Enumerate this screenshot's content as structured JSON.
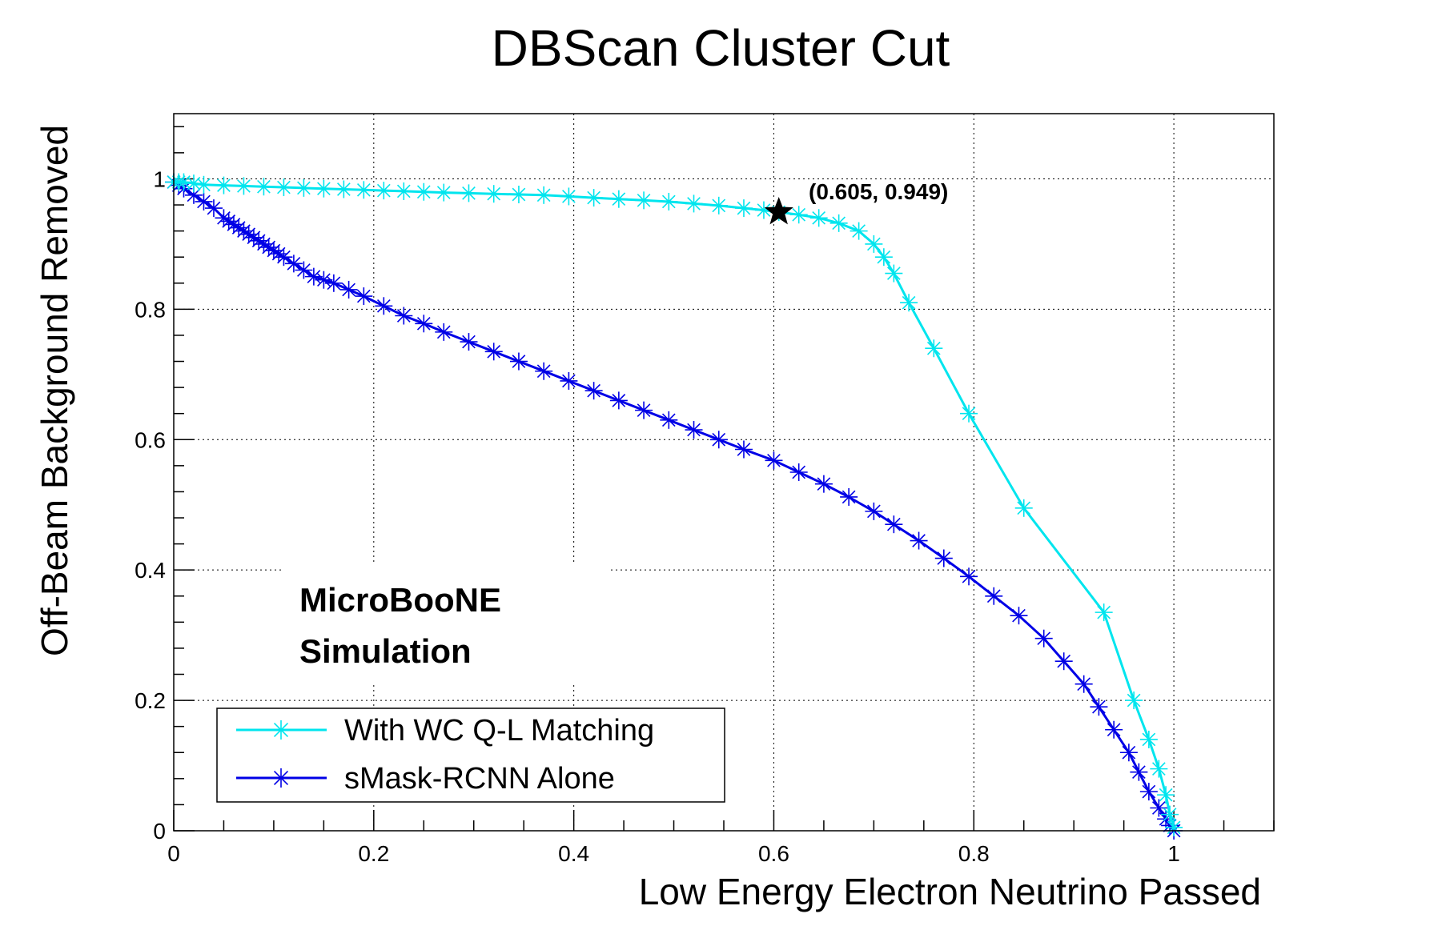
{
  "chart_data": {
    "type": "line",
    "title": "DBScan Cluster Cut",
    "xlabel": "Low Energy Electron Neutrino Passed",
    "ylabel": "Off-Beam Background Removed",
    "xlim": [
      0,
      1.1
    ],
    "ylim": [
      0,
      1.1
    ],
    "grid": true,
    "x_ticks": [
      {
        "value": 0,
        "label": "0"
      },
      {
        "value": 0.2,
        "label": "0.2"
      },
      {
        "value": 0.4,
        "label": "0.4"
      },
      {
        "value": 0.6,
        "label": "0.6"
      },
      {
        "value": 0.8,
        "label": "0.8"
      },
      {
        "value": 1,
        "label": "1"
      }
    ],
    "y_ticks": [
      {
        "value": 0,
        "label": "0"
      },
      {
        "value": 0.2,
        "label": "0.2"
      },
      {
        "value": 0.4,
        "label": "0.4"
      },
      {
        "value": 0.6,
        "label": "0.6"
      },
      {
        "value": 0.8,
        "label": "0.8"
      },
      {
        "value": 1,
        "label": "1"
      }
    ],
    "legend_position": "bottom-left",
    "series": [
      {
        "name": "With WC Q-L Matching",
        "color": "#00e5ee",
        "x": [
          0,
          0.005,
          0.01,
          0.02,
          0.03,
          0.05,
          0.07,
          0.09,
          0.11,
          0.13,
          0.15,
          0.17,
          0.19,
          0.21,
          0.23,
          0.25,
          0.27,
          0.295,
          0.32,
          0.345,
          0.37,
          0.395,
          0.42,
          0.445,
          0.47,
          0.495,
          0.52,
          0.545,
          0.57,
          0.59,
          0.605,
          0.625,
          0.645,
          0.665,
          0.685,
          0.7,
          0.71,
          0.72,
          0.735,
          0.76,
          0.795,
          0.85,
          0.93,
          0.96,
          0.975,
          0.985,
          0.992,
          0.996,
          1.0
        ],
        "y": [
          0.995,
          0.995,
          0.995,
          0.993,
          0.991,
          0.99,
          0.989,
          0.988,
          0.987,
          0.986,
          0.985,
          0.984,
          0.983,
          0.982,
          0.981,
          0.98,
          0.979,
          0.978,
          0.977,
          0.976,
          0.975,
          0.973,
          0.971,
          0.969,
          0.967,
          0.965,
          0.962,
          0.959,
          0.955,
          0.952,
          0.949,
          0.945,
          0.94,
          0.932,
          0.92,
          0.9,
          0.88,
          0.855,
          0.81,
          0.74,
          0.64,
          0.495,
          0.335,
          0.2,
          0.14,
          0.095,
          0.055,
          0.025,
          0.005
        ]
      },
      {
        "name": "sMask-RCNN Alone",
        "color": "#0000e6",
        "x": [
          0,
          0.005,
          0.01,
          0.02,
          0.03,
          0.04,
          0.05,
          0.055,
          0.06,
          0.065,
          0.07,
          0.075,
          0.08,
          0.085,
          0.09,
          0.095,
          0.1,
          0.105,
          0.11,
          0.12,
          0.13,
          0.14,
          0.15,
          0.16,
          0.175,
          0.19,
          0.21,
          0.23,
          0.25,
          0.27,
          0.295,
          0.32,
          0.345,
          0.37,
          0.395,
          0.42,
          0.445,
          0.47,
          0.495,
          0.52,
          0.545,
          0.57,
          0.6,
          0.625,
          0.65,
          0.675,
          0.7,
          0.72,
          0.745,
          0.77,
          0.795,
          0.82,
          0.845,
          0.87,
          0.89,
          0.91,
          0.925,
          0.94,
          0.955,
          0.965,
          0.975,
          0.985,
          0.992,
          0.996,
          1.0
        ],
        "y": [
          0.995,
          0.99,
          0.985,
          0.975,
          0.965,
          0.955,
          0.94,
          0.935,
          0.93,
          0.925,
          0.92,
          0.915,
          0.91,
          0.905,
          0.9,
          0.895,
          0.89,
          0.885,
          0.88,
          0.87,
          0.86,
          0.85,
          0.845,
          0.84,
          0.83,
          0.82,
          0.805,
          0.79,
          0.778,
          0.765,
          0.75,
          0.735,
          0.72,
          0.705,
          0.69,
          0.675,
          0.66,
          0.645,
          0.63,
          0.615,
          0.6,
          0.585,
          0.568,
          0.55,
          0.532,
          0.512,
          0.49,
          0.47,
          0.445,
          0.418,
          0.39,
          0.36,
          0.33,
          0.295,
          0.26,
          0.225,
          0.19,
          0.155,
          0.12,
          0.09,
          0.06,
          0.035,
          0.018,
          0.008,
          0.0
        ]
      }
    ],
    "annotations": [
      {
        "label": "(0.605, 0.949)",
        "x": 0.605,
        "y": 0.949,
        "marker": "star"
      }
    ],
    "watermark_lines": [
      "MicroBooNE",
      "Simulation"
    ]
  }
}
